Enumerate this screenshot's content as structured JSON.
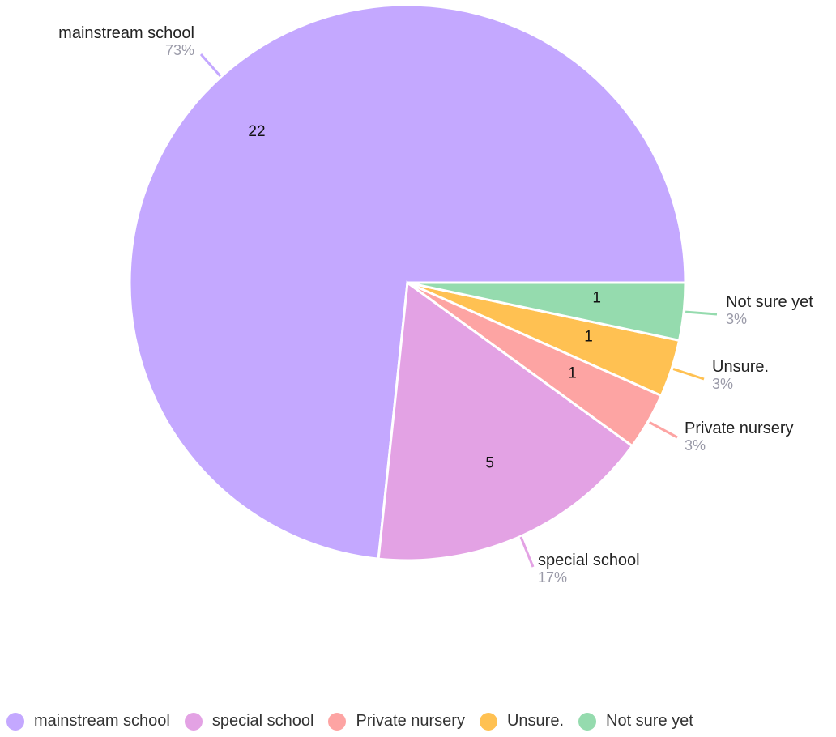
{
  "chart_data": {
    "type": "pie",
    "categories": [
      "mainstream school",
      "special school",
      "Private nursery",
      "Unsure.",
      "Not sure yet"
    ],
    "values": [
      22,
      5,
      1,
      1,
      1
    ],
    "percent_labels": [
      "73%",
      "17%",
      "3%",
      "3%",
      "3%"
    ],
    "colors": [
      "#c4a8ff",
      "#e3a2e4",
      "#fda4a3",
      "#ffc152",
      "#95dbae"
    ],
    "legend_position": "bottom-left"
  }
}
